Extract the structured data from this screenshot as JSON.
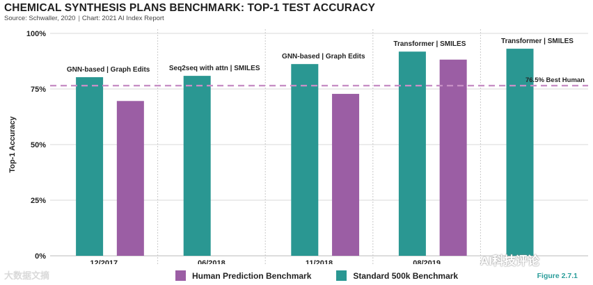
{
  "header": {
    "title": "CHEMICAL SYNTHESIS PLANS BENCHMARK: TOP-1 TEST ACCURACY",
    "source": "Source: Schwaller, 2020",
    "chart_credit": "Chart: 2021 AI Index Report"
  },
  "figure_number": "Figure 2.7.1",
  "watermarks": {
    "left": "大数据文摘",
    "right": "AI科技评论"
  },
  "colors": {
    "human": "#9b5ea4",
    "standard": "#2a9792",
    "reference": "#c78fc5",
    "grid": "#d9d9d9",
    "figure": "#2a9d9a"
  },
  "chart_data": {
    "type": "bar",
    "title": "CHEMICAL SYNTHESIS PLANS BENCHMARK: TOP-1 TEST ACCURACY",
    "ylabel": "Top-1 Accuracy",
    "xlabel": "",
    "ylim": [
      0,
      100
    ],
    "yticks": [
      "0%",
      "25%",
      "50%",
      "75%",
      "100%"
    ],
    "grid": true,
    "legend_position": "bottom",
    "legend": [
      "Human Prediction Benchmark",
      "Standard 500k Benchmark"
    ],
    "reference_line": {
      "value": 76.5,
      "label": "76.5% Best Human"
    },
    "groups": [
      {
        "date": "12/2017",
        "bars": [
          {
            "series": "Standard 500k Benchmark",
            "label": "GNN-based | Graph Edits",
            "value": 80.3
          },
          {
            "series": "Human Prediction Benchmark",
            "label": "",
            "value": 69.6
          }
        ]
      },
      {
        "date": "06/2018",
        "bars": [
          {
            "series": "Standard 500k Benchmark",
            "label": "Seq2seq with attn | SMILES",
            "value": 80.9
          }
        ]
      },
      {
        "date": "11/2018",
        "bars": [
          {
            "series": "Standard 500k Benchmark",
            "label": "GNN-based | Graph Edits",
            "value": 86.2
          },
          {
            "series": "Human Prediction Benchmark",
            "label": "",
            "value": 72.8
          }
        ]
      },
      {
        "date": "08/2019",
        "bars": [
          {
            "series": "Standard 500k Benchmark",
            "label": "Transformer | SMILES",
            "value": 91.8
          },
          {
            "series": "Human Prediction Benchmark",
            "label": "",
            "value": 88.2
          }
        ]
      },
      {
        "date": "",
        "bars": [
          {
            "series": "Standard 500k Benchmark",
            "label": "Transformer | SMILES",
            "value": 93.1
          }
        ]
      }
    ]
  }
}
